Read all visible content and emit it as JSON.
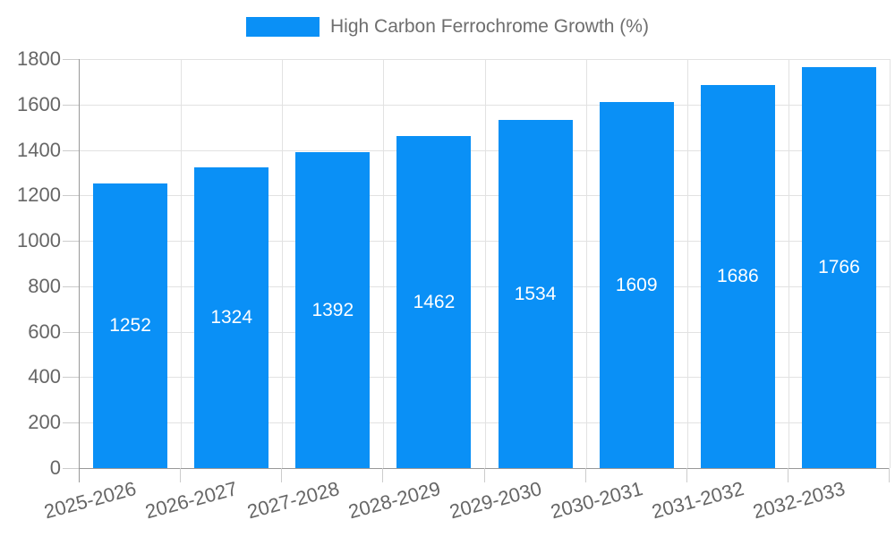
{
  "chart_data": {
    "type": "bar",
    "legend": "High Carbon Ferrochrome Growth (%)",
    "legend_position": "top-center",
    "categories": [
      "2025-2026",
      "2026-2027",
      "2027-2028",
      "2028-2029",
      "2029-2030",
      "2030-2031",
      "2031-2032",
      "2032-2033"
    ],
    "values": [
      1252,
      1324,
      1392,
      1462,
      1534,
      1609,
      1686,
      1766
    ],
    "yticks": [
      0,
      200,
      400,
      600,
      800,
      1000,
      1200,
      1400,
      1600,
      1800
    ],
    "ylim": [
      0,
      1800
    ],
    "grid": true,
    "xlabel": "",
    "ylabel": "",
    "colors": {
      "bar": "#0a90f6",
      "value_label": "#ffffff",
      "axis_line": "#999999",
      "tick": "#cccccc",
      "grid": "#e2e2e2",
      "text": "#666666",
      "legend_text": "#6e6e6e"
    }
  }
}
